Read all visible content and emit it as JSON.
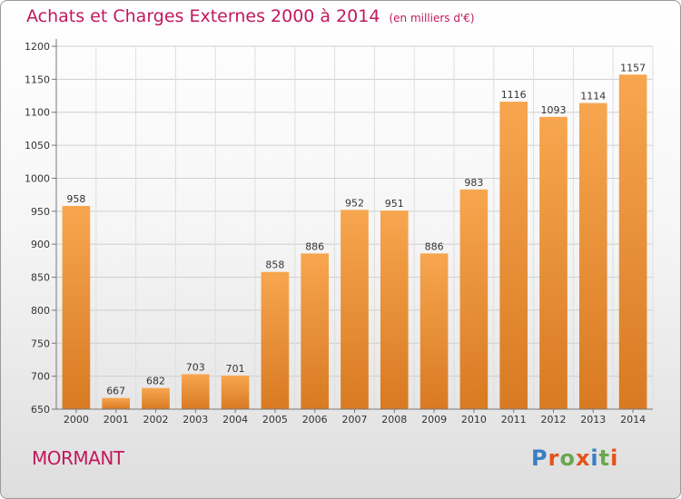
{
  "title": {
    "main": "Achats et Charges Externes 2000 à 2014",
    "unit": "(en milliers d'€)"
  },
  "commune": "MORMANT",
  "logo": {
    "text": "Proxiti",
    "colors": [
      "#3a7fc1",
      "#e2541b",
      "#6aa84f",
      "#e2541b",
      "#3a7fc1",
      "#6aa84f",
      "#e2541b"
    ]
  },
  "colors": {
    "bar_light": "#f7a64f",
    "bar_dark": "#d87a22",
    "accent": "#c2185b"
  },
  "chart_data": {
    "type": "bar",
    "categories": [
      "2000",
      "2001",
      "2002",
      "2003",
      "2004",
      "2005",
      "2006",
      "2007",
      "2008",
      "2009",
      "2010",
      "2011",
      "2012",
      "2013",
      "2014"
    ],
    "values": [
      958,
      667,
      682,
      703,
      701,
      858,
      886,
      952,
      951,
      886,
      983,
      1116,
      1093,
      1114,
      1157
    ],
    "ylim": [
      650,
      1200
    ],
    "yticks": [
      650,
      700,
      750,
      800,
      850,
      900,
      950,
      1000,
      1050,
      1100,
      1150,
      1200
    ],
    "grid": true,
    "title": "Achats et Charges Externes 2000 à 2014",
    "xlabel": "",
    "ylabel": ""
  }
}
